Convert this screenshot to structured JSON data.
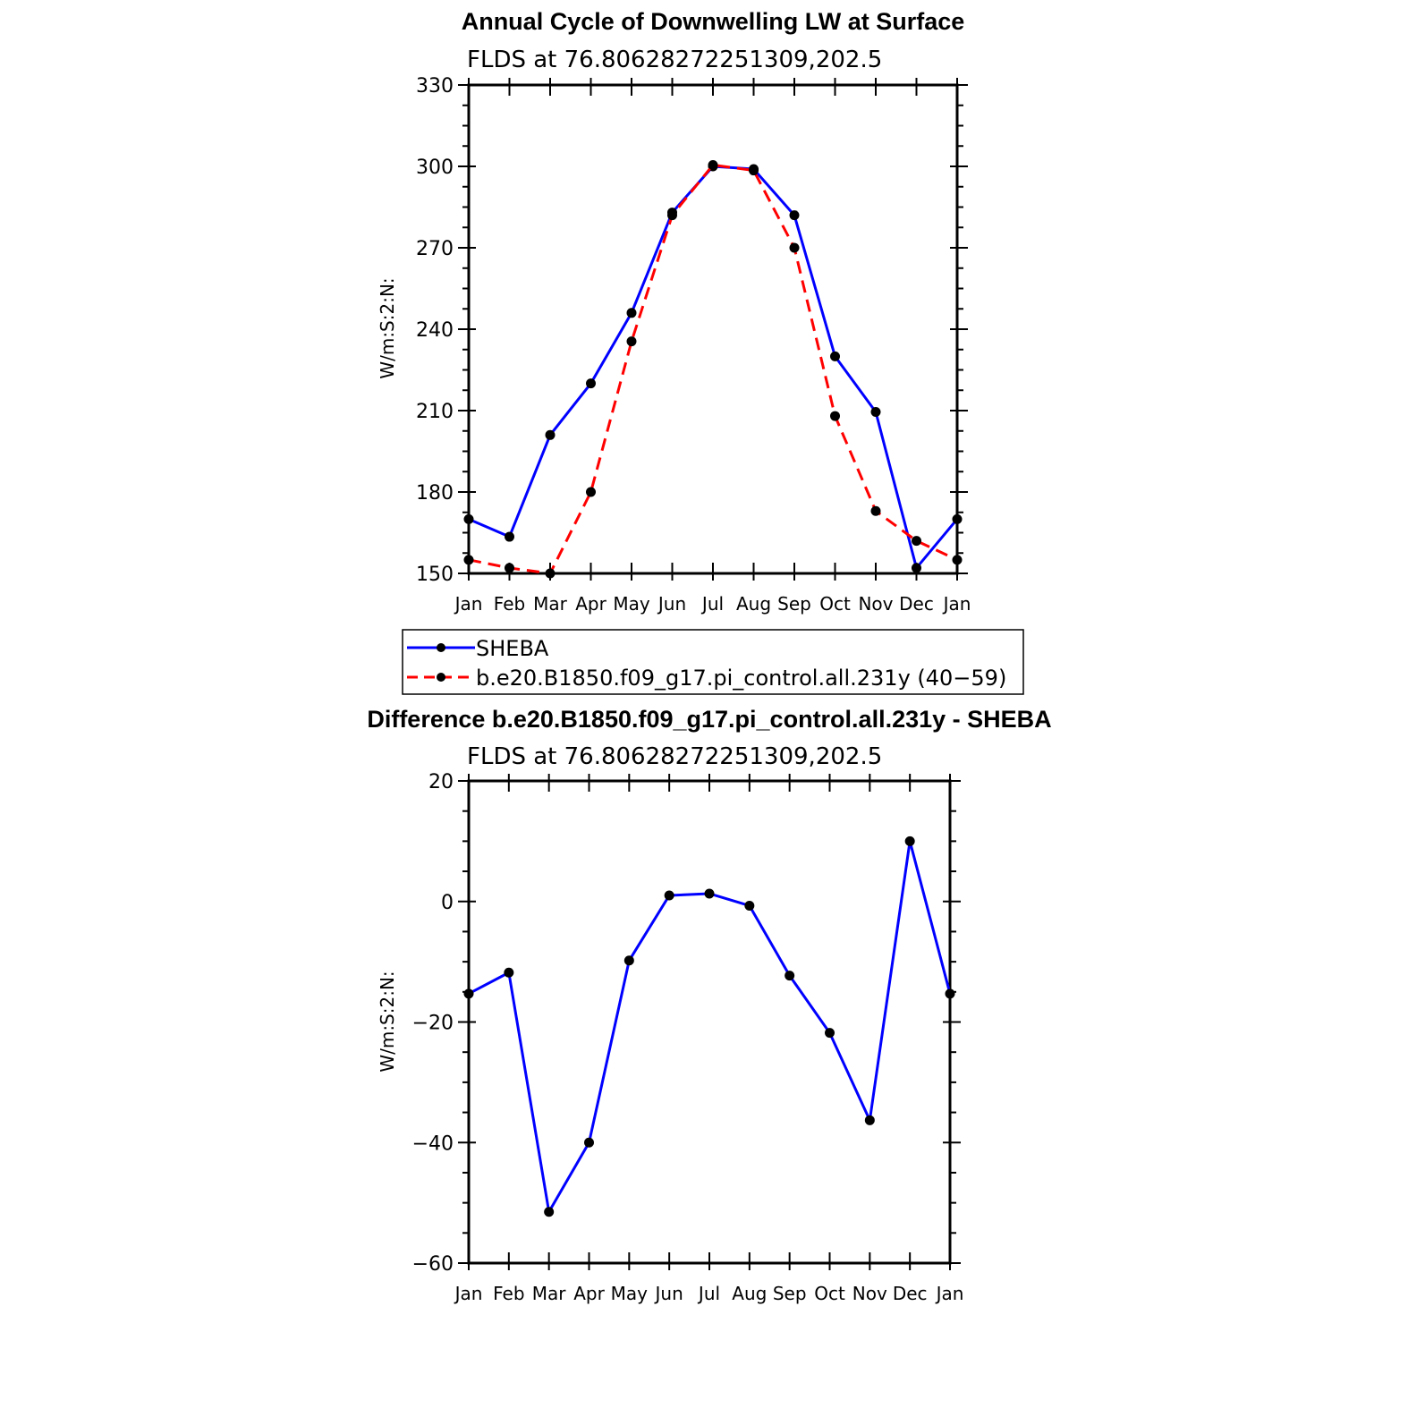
{
  "chart_data": [
    {
      "type": "line",
      "title": "Annual Cycle of Downwelling LW at Surface",
      "subtitle": "FLDS at 76.80628272251309,202.5",
      "ylabel": "W/m:S:2:N:",
      "xlabel": "",
      "categories": [
        "Jan",
        "Feb",
        "Mar",
        "Apr",
        "May",
        "Jun",
        "Jul",
        "Aug",
        "Sep",
        "Oct",
        "Nov",
        "Dec",
        "Jan"
      ],
      "ylim": [
        150,
        330
      ],
      "yticks": [
        "150",
        "180",
        "210",
        "240",
        "270",
        "300",
        "330"
      ],
      "series": [
        {
          "name": "SHEBA",
          "color": "#0000ff",
          "dash": "solid",
          "values": [
            170,
            163.5,
            201,
            220,
            246,
            283,
            300,
            299,
            282,
            230,
            209.5,
            152,
            170
          ]
        },
        {
          "name": "b.e20.B1850.f09_g17.pi_control.all.231y (40−59)",
          "color": "#ff0000",
          "dash": "dashed",
          "values": [
            155,
            152,
            150,
            180,
            235.5,
            282,
            300.5,
            298.5,
            270,
            208,
            173,
            162,
            155
          ]
        }
      ],
      "legend": "below"
    },
    {
      "type": "line",
      "title": "Difference b.e20.B1850.f09_g17.pi_control.all.231y - SHEBA",
      "subtitle": "FLDS at 76.80628272251309,202.5",
      "ylabel": "W/m:S:2:N:",
      "xlabel": "",
      "categories": [
        "Jan",
        "Feb",
        "Mar",
        "Apr",
        "May",
        "Jun",
        "Jul",
        "Aug",
        "Sep",
        "Oct",
        "Nov",
        "Dec",
        "Jan"
      ],
      "ylim": [
        -60,
        20
      ],
      "yticks": [
        "−60",
        "−40",
        "−20",
        "0",
        "20"
      ],
      "series": [
        {
          "color": "#0000ff",
          "dash": "solid",
          "values": [
            -15.3,
            -11.8,
            -51.5,
            -40,
            -9.8,
            1,
            1.3,
            -0.7,
            -12.3,
            -21.8,
            -36.3,
            10,
            -15.3
          ]
        }
      ]
    }
  ]
}
